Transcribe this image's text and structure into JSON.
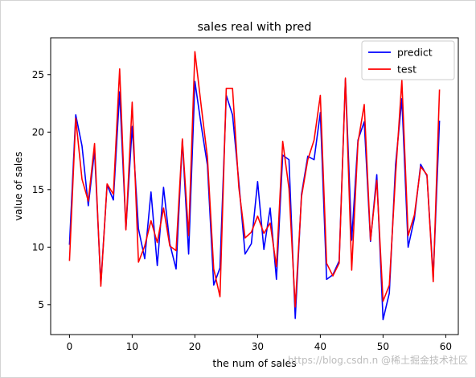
{
  "chart_data": {
    "type": "line",
    "title": "sales real with pred",
    "xlabel": "the num of sales",
    "ylabel": "value of sales",
    "xlim": [
      -3,
      62
    ],
    "ylim": [
      2.4,
      28.2
    ],
    "xticks": [
      0,
      10,
      20,
      30,
      40,
      50,
      60
    ],
    "yticks": [
      5,
      10,
      15,
      20,
      25
    ],
    "grid": false,
    "legend_position": "top-right",
    "x": [
      0,
      1,
      2,
      3,
      4,
      5,
      6,
      7,
      8,
      9,
      10,
      11,
      12,
      13,
      14,
      15,
      16,
      17,
      18,
      19,
      20,
      21,
      22,
      23,
      24,
      25,
      26,
      27,
      28,
      29,
      30,
      31,
      32,
      33,
      34,
      35,
      36,
      37,
      38,
      39,
      40,
      41,
      42,
      43,
      44,
      45,
      46,
      47,
      48,
      49,
      50,
      51,
      52,
      53,
      54,
      55,
      56,
      57,
      58,
      59
    ],
    "series": [
      {
        "name": "predict",
        "color": "#0000ff",
        "values": [
          10.2,
          21.5,
          18.8,
          13.6,
          18.4,
          6.8,
          15.4,
          14.1,
          23.5,
          11.6,
          20.5,
          11.6,
          9.0,
          14.8,
          8.4,
          15.2,
          10.3,
          8.1,
          19.3,
          9.4,
          24.4,
          20.6,
          17.1,
          6.7,
          8.2,
          23.2,
          21.5,
          15.7,
          9.4,
          10.3,
          15.7,
          9.8,
          13.4,
          7.2,
          18.0,
          17.6,
          3.8,
          14.6,
          17.9,
          17.6,
          21.7,
          7.2,
          7.6,
          8.8,
          24.6,
          10.6,
          19.3,
          20.9,
          10.5,
          16.3,
          3.7,
          6.0,
          17.2,
          22.9,
          10.0,
          12.5,
          17.2,
          16.2,
          7.4,
          21.0
        ]
      },
      {
        "name": "test",
        "color": "#ff0000",
        "values": [
          8.8,
          21.2,
          15.9,
          14.0,
          19.0,
          6.6,
          15.5,
          14.6,
          25.5,
          11.5,
          22.6,
          8.7,
          10.1,
          12.3,
          10.4,
          13.4,
          10.1,
          9.7,
          19.4,
          11.0,
          27.0,
          22.3,
          17.8,
          8.1,
          5.7,
          23.8,
          23.8,
          15.2,
          10.8,
          11.3,
          12.7,
          11.2,
          12.1,
          8.3,
          19.2,
          15.1,
          4.8,
          14.4,
          17.6,
          19.3,
          23.2,
          8.6,
          7.5,
          8.6,
          24.7,
          8.0,
          19.1,
          22.4,
          10.6,
          15.8,
          5.3,
          6.7,
          16.3,
          24.5,
          11.0,
          12.8,
          17.0,
          16.3,
          7.0,
          23.7
        ]
      }
    ]
  },
  "watermark": "https://blog.csdn.n @稀土掘金技术社区"
}
